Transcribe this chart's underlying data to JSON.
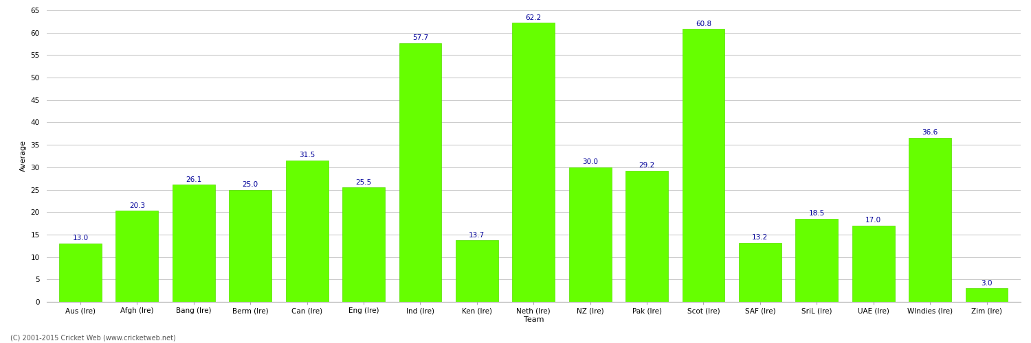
{
  "categories": [
    "Aus (Ire)",
    "Afgh (Ire)",
    "Bang (Ire)",
    "Berm (Ire)",
    "Can (Ire)",
    "Eng (Ire)",
    "Ind (Ire)",
    "Ken (Ire)",
    "Neth (Ire)",
    "NZ (Ire)",
    "Pak (Ire)",
    "Scot (Ire)",
    "SAF (Ire)",
    "SriL (Ire)",
    "UAE (Ire)",
    "WIndies (Ire)",
    "Zim (Ire)"
  ],
  "values": [
    13.0,
    20.3,
    26.1,
    25.0,
    31.5,
    25.5,
    57.7,
    13.7,
    62.2,
    30.0,
    29.2,
    60.8,
    13.2,
    18.5,
    17.0,
    36.6,
    3.0
  ],
  "bar_color": "#66ff00",
  "bar_edge_color": "#55dd00",
  "label_color": "#000099",
  "xlabel": "Team",
  "ylabel": "Average",
  "ylim": [
    0,
    65
  ],
  "yticks": [
    0,
    5,
    10,
    15,
    20,
    25,
    30,
    35,
    40,
    45,
    50,
    55,
    60,
    65
  ],
  "grid_color": "#cccccc",
  "background_color": "#ffffff",
  "footer_text": "(C) 2001-2015 Cricket Web (www.cricketweb.net)",
  "label_fontsize": 7.5,
  "axis_label_fontsize": 8,
  "tick_fontsize": 7.5,
  "footer_fontsize": 7
}
